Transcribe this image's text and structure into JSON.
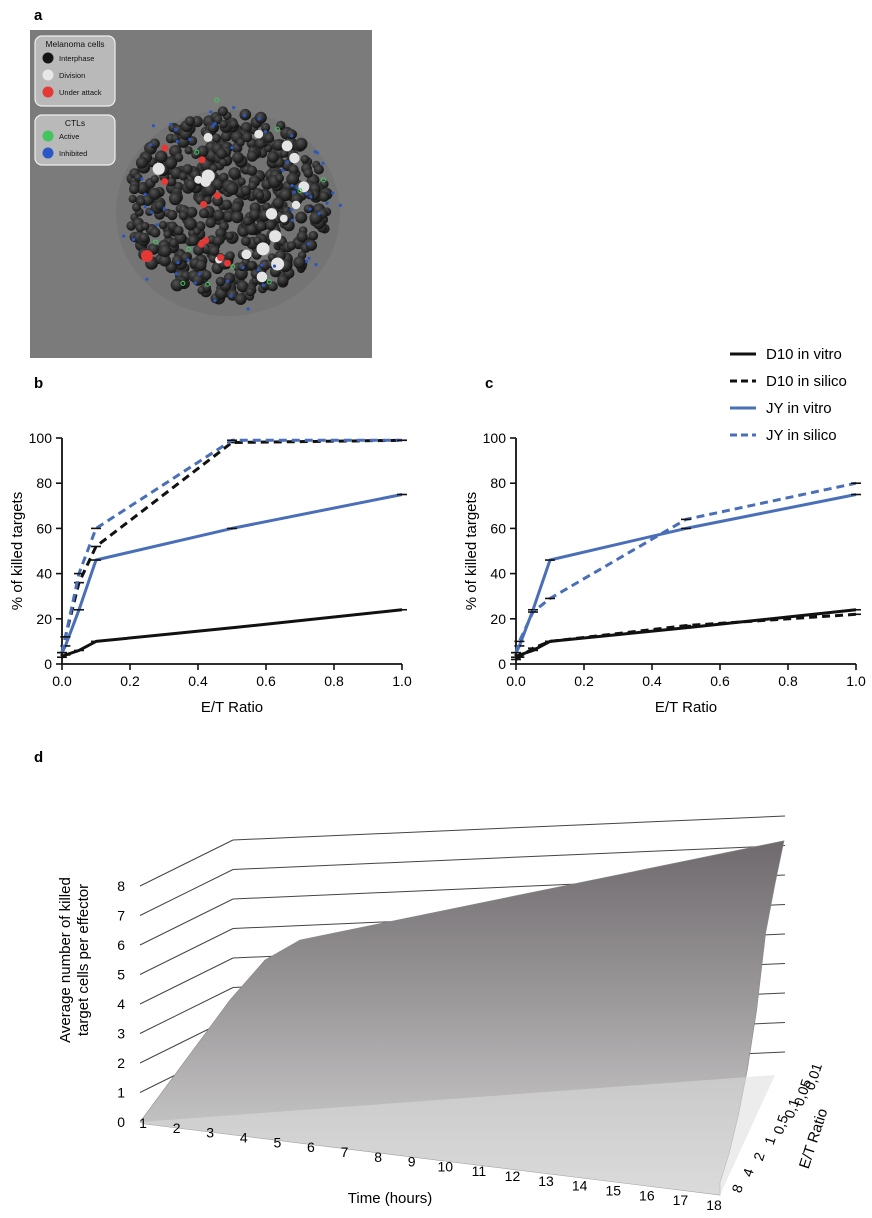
{
  "panels": {
    "a": {
      "label": "a",
      "legend_melanoma": {
        "title": "Melanoma cells",
        "items": [
          {
            "name": "Interphase",
            "color": "#1a1a1a"
          },
          {
            "name": "Division",
            "color": "#e8e8e8"
          },
          {
            "name": "Under attack",
            "color": "#e53935"
          }
        ]
      },
      "legend_ctl": {
        "title": "CTLs",
        "items": [
          {
            "name": "Active",
            "color": "#43c45c"
          },
          {
            "name": "Inhibited",
            "color": "#2a56c6"
          }
        ]
      }
    },
    "b": {
      "label": "b"
    },
    "c": {
      "label": "c"
    },
    "d": {
      "label": "d"
    }
  },
  "legend": [
    {
      "name": "D10 in vitro",
      "color": "#111111",
      "dash": "solid"
    },
    {
      "name": "D10 in silico",
      "color": "#111111",
      "dash": "dashed"
    },
    {
      "name": "JY in vitro",
      "color": "#4a6fb8",
      "dash": "solid"
    },
    {
      "name": "JY in silico",
      "color": "#4a6fb8",
      "dash": "dashed"
    }
  ],
  "chart_data": [
    {
      "panel": "b",
      "type": "line",
      "xlabel": "E/T Ratio",
      "ylabel": "% of  killed targets",
      "xlim": [
        0,
        1.0
      ],
      "ylim": [
        0,
        100
      ],
      "xticks": [
        "0.0",
        "0.2",
        "0.4",
        "0.6",
        "0.8",
        "1.0"
      ],
      "yticks": [
        "0",
        "20",
        "40",
        "60",
        "80",
        "100"
      ],
      "series": [
        {
          "name": "D10 in vitro",
          "x": [
            0,
            0.01,
            0.05,
            0.1,
            0.5,
            1.0
          ],
          "y": [
            3,
            4,
            6,
            10,
            16,
            24
          ]
        },
        {
          "name": "D10 in silico",
          "x": [
            0,
            0.01,
            0.05,
            0.1,
            0.5,
            1.0
          ],
          "y": [
            5,
            12,
            36,
            52,
            98,
            99
          ]
        },
        {
          "name": "JY in vitro",
          "x": [
            0,
            0.01,
            0.05,
            0.1,
            0.5,
            1.0
          ],
          "y": [
            5,
            8,
            24,
            46,
            60,
            75
          ]
        },
        {
          "name": "JY in silico",
          "x": [
            0,
            0.01,
            0.05,
            0.1,
            0.5,
            1.0
          ],
          "y": [
            5,
            12,
            40,
            60,
            99,
            99
          ]
        }
      ]
    },
    {
      "panel": "c",
      "type": "line",
      "xlabel": "E/T Ratio",
      "ylabel": "% of  killed targets",
      "xlim": [
        0,
        1.0
      ],
      "ylim": [
        0,
        100
      ],
      "xticks": [
        "0.0",
        "0.2",
        "0.4",
        "0.6",
        "0.8",
        "1.0"
      ],
      "yticks": [
        "0",
        "20",
        "40",
        "60",
        "80",
        "100"
      ],
      "series": [
        {
          "name": "D10 in vitro",
          "x": [
            0,
            0.01,
            0.05,
            0.1,
            0.5,
            1.0
          ],
          "y": [
            3,
            4,
            6,
            10,
            16,
            24
          ]
        },
        {
          "name": "D10 in silico",
          "x": [
            0,
            0.01,
            0.05,
            0.1,
            0.5,
            1.0
          ],
          "y": [
            2,
            3,
            7,
            10,
            17,
            22
          ]
        },
        {
          "name": "JY in vitro",
          "x": [
            0,
            0.01,
            0.05,
            0.1,
            0.5,
            1.0
          ],
          "y": [
            5,
            8,
            24,
            46,
            60,
            75
          ]
        },
        {
          "name": "JY in silico",
          "x": [
            0,
            0.01,
            0.05,
            0.1,
            0.5,
            1.0
          ],
          "y": [
            5,
            10,
            23,
            29,
            64,
            80
          ]
        }
      ]
    },
    {
      "panel": "d",
      "type": "surface",
      "zlabel": "Average number of killed target cells per effector",
      "xlabel": "Time (hours)",
      "ylabel": "E/T Ratio",
      "zticks": [
        "0",
        "1",
        "2",
        "3",
        "4",
        "5",
        "6",
        "7",
        "8"
      ],
      "xticks": [
        "1",
        "2",
        "3",
        "4",
        "5",
        "6",
        "7",
        "8",
        "9",
        "10",
        "11",
        "12",
        "13",
        "14",
        "15",
        "16",
        "17",
        "18"
      ],
      "yticks": [
        "0,01",
        "0,05",
        "0,1",
        "0,5",
        "1",
        "2",
        "4",
        "8"
      ],
      "z_at_time_18": [
        7.6,
        6.9,
        6.0,
        4.0,
        2.6,
        1.6,
        0.9,
        0.5
      ]
    }
  ]
}
